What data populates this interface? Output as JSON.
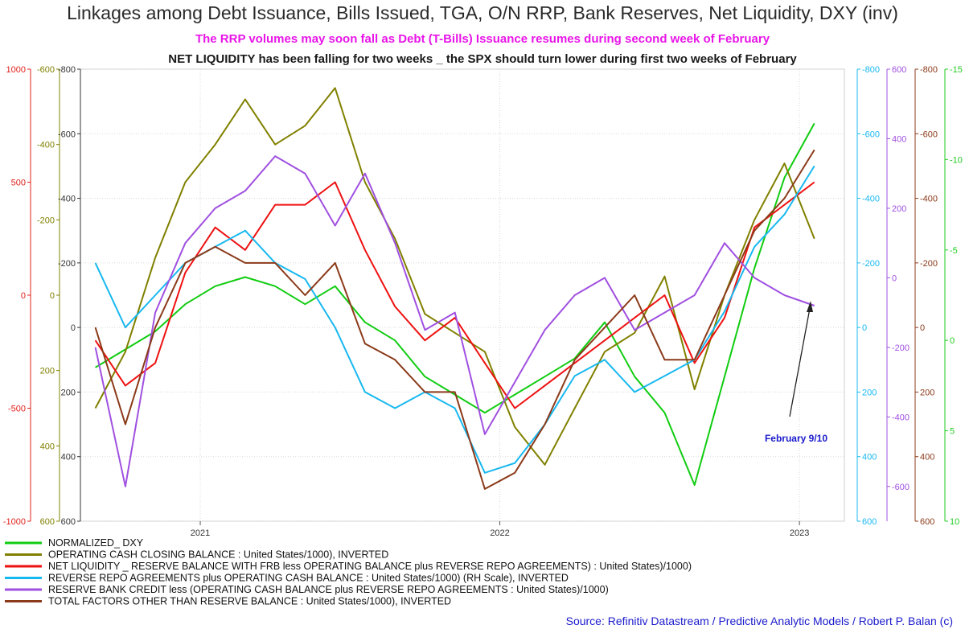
{
  "chart_data": {
    "type": "line",
    "title": "Linkages among Debt Issuance, Bills Issued, TGA, O/N RRP, Bank Reserves, Net Liquidity, DXY (inv)",
    "subtitle1": "The RRP volumes may soon fall as Debt (T-Bills) Issuance resumes during second week of February",
    "subtitle2": "NET LIQUIDITY has been falling for two weeks _ the SPX should turn lower during first two weeks of February",
    "x_range": [
      2020.6,
      2023.15
    ],
    "x_ticks": [
      {
        "label": "2021",
        "value": 2021.0
      },
      {
        "label": "2022",
        "value": 2022.0
      },
      {
        "label": "2023",
        "value": 2023.0
      }
    ],
    "axes": [
      {
        "id": "red",
        "side": "left",
        "color": "#e0201a",
        "min": -1000,
        "max": 1000,
        "ticks": [
          "1000",
          "500",
          "0",
          "-500",
          "-1000"
        ],
        "tick_values": [
          1000,
          500,
          0,
          -500,
          -1000
        ]
      },
      {
        "id": "olive",
        "side": "left",
        "color": "#808000",
        "min": 600,
        "max": -600,
        "ticks": [
          "-600",
          "-400",
          "-200",
          "0",
          "200",
          "400",
          "600"
        ],
        "tick_values": [
          -600,
          -400,
          -200,
          0,
          200,
          400,
          600
        ]
      },
      {
        "id": "darkleft",
        "side": "left",
        "color": "#333333",
        "min": 600,
        "max": -800,
        "ticks": [
          "-800",
          "-600",
          "-400",
          "-200",
          "0",
          "200",
          "400",
          "600"
        ],
        "tick_values": [
          -800,
          -600,
          -400,
          -200,
          0,
          200,
          400,
          600
        ]
      },
      {
        "id": "cyan",
        "side": "right",
        "color": "#18b8f0",
        "min": 600,
        "max": -800,
        "ticks": [
          "-800",
          "-600",
          "-400",
          "-200",
          "0",
          "200",
          "400",
          "600"
        ],
        "tick_values": [
          -800,
          -600,
          -400,
          -200,
          0,
          200,
          400,
          600
        ]
      },
      {
        "id": "purple",
        "side": "right",
        "color": "#a050e0",
        "min": -700,
        "max": 600,
        "ticks": [
          "600",
          "400",
          "200",
          "0",
          "-200",
          "-400",
          "-600"
        ],
        "tick_values": [
          600,
          400,
          200,
          0,
          -200,
          -400,
          -600
        ]
      },
      {
        "id": "brown",
        "side": "right",
        "color": "#8b3a1a",
        "min": 600,
        "max": -800,
        "ticks": [
          "-800",
          "-600",
          "-400",
          "-200",
          "0",
          "200",
          "400",
          "600"
        ],
        "tick_values": [
          -800,
          -600,
          -400,
          -200,
          0,
          200,
          400,
          600
        ]
      },
      {
        "id": "green",
        "side": "right",
        "color": "#22cc22",
        "min": 10,
        "max": -15,
        "ticks": [
          "-15",
          "-10",
          "-5",
          "0",
          "5",
          "10"
        ],
        "tick_values": [
          -15,
          -10,
          -5,
          0,
          5,
          10
        ]
      }
    ],
    "series": [
      {
        "name": "NORMALIZED_ DXY",
        "color": "#11cc11",
        "axis": "green",
        "x": [
          2020.65,
          2020.75,
          2020.85,
          2020.95,
          2021.05,
          2021.15,
          2021.25,
          2021.35,
          2021.45,
          2021.55,
          2021.65,
          2021.75,
          2021.85,
          2021.95,
          2022.05,
          2022.15,
          2022.25,
          2022.35,
          2022.45,
          2022.55,
          2022.65,
          2022.75,
          2022.85,
          2022.95,
          2023.05
        ],
        "values": [
          1.5,
          0.5,
          -0.5,
          -2,
          -3,
          -3.5,
          -3,
          -2,
          -3,
          -1,
          0,
          2,
          3,
          4,
          3,
          2,
          1,
          -1,
          2,
          4,
          8,
          2,
          -4,
          -9,
          -12
        ]
      },
      {
        "name": "OPERATING CASH CLOSING BALANCE : United States/1000), INVERTED",
        "color": "#808000",
        "axis": "olive",
        "x": [
          2020.65,
          2020.75,
          2020.85,
          2020.95,
          2021.05,
          2021.15,
          2021.25,
          2021.35,
          2021.45,
          2021.55,
          2021.65,
          2021.75,
          2021.85,
          2021.95,
          2022.05,
          2022.15,
          2022.25,
          2022.35,
          2022.45,
          2022.55,
          2022.65,
          2022.75,
          2022.85,
          2022.95,
          2023.05
        ],
        "values": [
          300,
          150,
          -100,
          -300,
          -400,
          -520,
          -400,
          -450,
          -550,
          -300,
          -150,
          50,
          100,
          150,
          350,
          450,
          300,
          150,
          100,
          -50,
          250,
          0,
          -200,
          -350,
          -150
        ]
      },
      {
        "name": "NET LIQUIDITY _ RESERVE BALANCE WITH FRB less OPERATING BALANCE plus REVERSE REPO AGREEMENTS) : United States)/1000)",
        "color": "#ee1111",
        "axis": "red",
        "x": [
          2020.65,
          2020.75,
          2020.85,
          2020.95,
          2021.05,
          2021.15,
          2021.25,
          2021.35,
          2021.45,
          2021.55,
          2021.65,
          2021.75,
          2021.85,
          2021.95,
          2022.05,
          2022.15,
          2022.25,
          2022.35,
          2022.45,
          2022.55,
          2022.65,
          2022.75,
          2022.85,
          2022.95,
          2023.05
        ],
        "values": [
          -200,
          -400,
          -300,
          100,
          300,
          200,
          400,
          400,
          500,
          200,
          -50,
          -200,
          -100,
          -300,
          -500,
          -400,
          -300,
          -200,
          -100,
          0,
          -300,
          -100,
          300,
          400,
          500
        ]
      },
      {
        "name": "REVERSE REPO AGREEMENTS plus OPERATING CASH BALANCE : United States/1000) (RH Scale), INVERTED",
        "color": "#18b8f0",
        "axis": "cyan",
        "x": [
          2020.65,
          2020.75,
          2020.85,
          2020.95,
          2021.05,
          2021.15,
          2021.25,
          2021.35,
          2021.45,
          2021.55,
          2021.65,
          2021.75,
          2021.85,
          2021.95,
          2022.05,
          2022.15,
          2022.25,
          2022.35,
          2022.45,
          2022.55,
          2022.65,
          2022.75,
          2022.85,
          2022.95,
          2023.05
        ],
        "values": [
          -200,
          0,
          -100,
          -200,
          -250,
          -300,
          -200,
          -150,
          0,
          200,
          250,
          200,
          250,
          450,
          420,
          300,
          150,
          100,
          200,
          150,
          100,
          -50,
          -250,
          -350,
          -500
        ]
      },
      {
        "name": "RESERVE BANK CREDIT less (OPERATING CASH BALANCE plus REVERSE REPO AGREEMENTS : United States)/1000)",
        "color": "#a050e0",
        "axis": "purple",
        "x": [
          2020.65,
          2020.75,
          2020.85,
          2020.95,
          2021.05,
          2021.15,
          2021.25,
          2021.35,
          2021.45,
          2021.55,
          2021.65,
          2021.75,
          2021.85,
          2021.95,
          2022.05,
          2022.15,
          2022.25,
          2022.35,
          2022.45,
          2022.55,
          2022.65,
          2022.75,
          2022.85,
          2022.95,
          2023.05
        ],
        "values": [
          -200,
          -600,
          -100,
          100,
          200,
          250,
          350,
          300,
          150,
          300,
          100,
          -150,
          -100,
          -450,
          -300,
          -150,
          -50,
          0,
          -150,
          -100,
          -50,
          100,
          0,
          -50,
          -80
        ]
      },
      {
        "name": "TOTAL FACTORS OTHER THAN RESERVE BALANCE : United States/1000), INVERTED",
        "color": "#8b3a1a",
        "axis": "brown",
        "x": [
          2020.65,
          2020.75,
          2020.85,
          2020.95,
          2021.05,
          2021.15,
          2021.25,
          2021.35,
          2021.45,
          2021.55,
          2021.65,
          2021.75,
          2021.85,
          2021.95,
          2022.05,
          2022.15,
          2022.25,
          2022.35,
          2022.45,
          2022.55,
          2022.65,
          2022.75,
          2022.85,
          2022.95,
          2023.05
        ],
        "values": [
          0,
          300,
          0,
          -200,
          -250,
          -200,
          -200,
          -100,
          -200,
          50,
          100,
          200,
          200,
          500,
          450,
          300,
          100,
          0,
          -100,
          100,
          100,
          -100,
          -300,
          -400,
          -550
        ]
      }
    ],
    "annotation": {
      "text": "February 9/10"
    },
    "source": "Source: Refinitiv Datastream / Predictive Analytic Models / Robert P. Balan (c)"
  }
}
